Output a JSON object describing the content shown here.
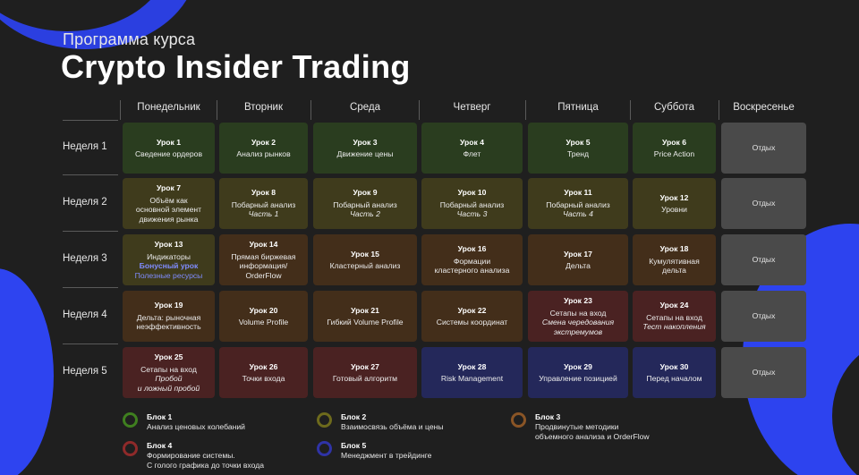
{
  "header": {
    "subtitle": "Программа курса",
    "title": "Crypto Insider Trading"
  },
  "days": [
    "Понедельник",
    "Вторник",
    "Среда",
    "Четверг",
    "Пятница",
    "Суббота",
    "Воскресенье"
  ],
  "weeks": [
    "Неделя 1",
    "Неделя 2",
    "Неделя 3",
    "Неделя 4",
    "Неделя 5"
  ],
  "cells": [
    [
      {
        "title": "Урок 1",
        "lines": "Сведение ордеров",
        "italic": "",
        "block": "green"
      },
      {
        "title": "Урок 2",
        "lines": "Анализ рынков",
        "italic": "",
        "block": "green"
      },
      {
        "title": "Урок 3",
        "lines": "Движение цены",
        "italic": "",
        "block": "green"
      },
      {
        "title": "Урок 4",
        "lines": "Флет",
        "italic": "",
        "block": "green"
      },
      {
        "title": "Урок 5",
        "lines": "Тренд",
        "italic": "",
        "block": "green"
      },
      {
        "title": "Урок 6",
        "lines": "Price Action",
        "italic": "",
        "block": "green"
      },
      {
        "title": "",
        "lines": "Отдых",
        "italic": "",
        "block": "rest"
      }
    ],
    [
      {
        "title": "Урок 7",
        "lines": "Объём как\nосновной элемент\nдвижения рынка",
        "italic": "",
        "block": "olive"
      },
      {
        "title": "Урок 8",
        "lines": "Побарный анализ",
        "italic": "Часть 1",
        "block": "olive"
      },
      {
        "title": "Урок 9",
        "lines": "Побарный анализ",
        "italic": "Часть 2",
        "block": "olive"
      },
      {
        "title": "Урок 10",
        "lines": "Побарный анализ",
        "italic": "Часть 3",
        "block": "olive"
      },
      {
        "title": "Урок 11",
        "lines": "Побарный анализ",
        "italic": "Часть 4",
        "block": "olive"
      },
      {
        "title": "Урок 12",
        "lines": "Уровни",
        "italic": "",
        "block": "olive"
      },
      {
        "title": "",
        "lines": "Отдых",
        "italic": "",
        "block": "rest"
      }
    ],
    [
      {
        "title": "Урок 13",
        "lines": "Индикаторы",
        "italic": "",
        "bonus": "Бонусный урок",
        "res": "Полезные ресурсы",
        "block": "olive"
      },
      {
        "title": "Урок 14",
        "lines": "Прямая биржевая\nинформация/\nOrderFlow",
        "italic": "",
        "block": "brown"
      },
      {
        "title": "Урок 15",
        "lines": "Кластерный анализ",
        "italic": "",
        "block": "brown"
      },
      {
        "title": "Урок 16",
        "lines": "Формации\nкластерного анализа",
        "italic": "",
        "block": "brown"
      },
      {
        "title": "Урок 17",
        "lines": "Дельта",
        "italic": "",
        "block": "brown"
      },
      {
        "title": "Урок 18",
        "lines": "Кумулятивная\nдельта",
        "italic": "",
        "block": "brown"
      },
      {
        "title": "",
        "lines": "Отдых",
        "italic": "",
        "block": "rest"
      }
    ],
    [
      {
        "title": "Урок 19",
        "lines": "Дельта: рыночная\nнеэффективность",
        "italic": "",
        "block": "brown"
      },
      {
        "title": "Урок 20",
        "lines": "Volume Profile",
        "italic": "",
        "block": "brown"
      },
      {
        "title": "Урок 21",
        "lines": "Гибкий Volume Profile",
        "italic": "",
        "block": "brown"
      },
      {
        "title": "Урок 22",
        "lines": "Системы координат",
        "italic": "",
        "block": "brown"
      },
      {
        "title": "Урок 23",
        "lines": "Сетапы на вход",
        "italic": "Смена чередования\nэкстремумов",
        "block": "red"
      },
      {
        "title": "Урок 24",
        "lines": "Сетапы на вход",
        "italic": "Тест накопления",
        "block": "red"
      },
      {
        "title": "",
        "lines": "Отдых",
        "italic": "",
        "block": "rest"
      }
    ],
    [
      {
        "title": "Урок 25",
        "lines": "Сетапы на вход",
        "italic": "Пробой\nи ложный пробой",
        "block": "red"
      },
      {
        "title": "Урок 26",
        "lines": "Точки входа",
        "italic": "",
        "block": "red"
      },
      {
        "title": "Урок 27",
        "lines": "Готовый алгоритм",
        "italic": "",
        "block": "red"
      },
      {
        "title": "Урок 28",
        "lines": "Risk Management",
        "italic": "",
        "block": "blue"
      },
      {
        "title": "Урок 29",
        "lines": "Управление позицией",
        "italic": "",
        "block": "blue"
      },
      {
        "title": "Урок 30",
        "lines": "Перед началом",
        "italic": "",
        "block": "blue"
      },
      {
        "title": "",
        "lines": "Отдых",
        "italic": "",
        "block": "rest"
      }
    ]
  ],
  "legend": [
    {
      "name": "Блок 1",
      "desc": "Анализ ценовых колебаний",
      "color": "#3f7f1f"
    },
    {
      "name": "Блок 2",
      "desc": "Взаимосвязь объёма и цены",
      "color": "#6d6a1c"
    },
    {
      "name": "Блок 3",
      "desc": "Продвинутые методики\nобъемного анализа и OrderFlow",
      "color": "#8a5526"
    },
    {
      "name": "Блок 4",
      "desc": "Формирование системы.\nС голого графика до точки входа",
      "color": "#8f2a2a"
    },
    {
      "name": "Блок 5",
      "desc": "Менеджмент в трейдинге",
      "color": "#2f33a6"
    }
  ],
  "colors": {
    "accent_blue": "#2d43ef",
    "background": "#1f1f1f"
  }
}
